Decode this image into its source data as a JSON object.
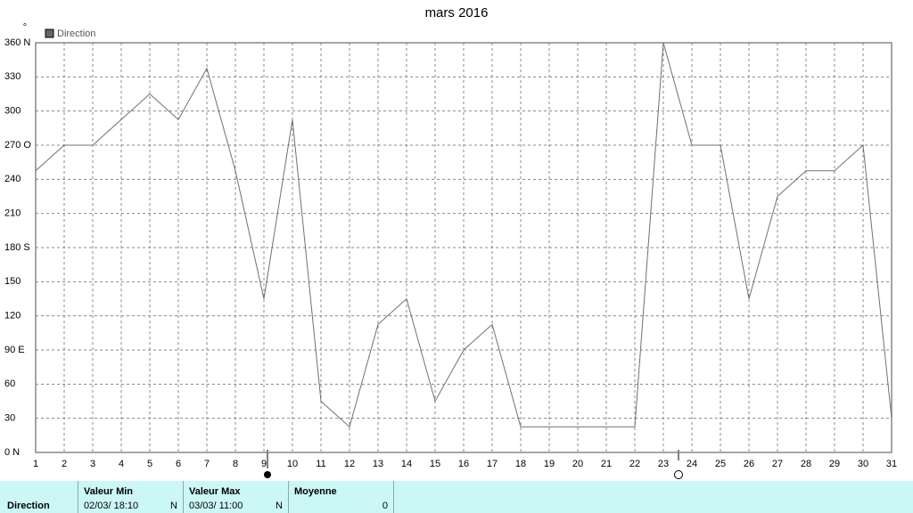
{
  "chart_data": {
    "type": "line",
    "title": "mars 2016",
    "ylabel": "°",
    "x": [
      1,
      2,
      3,
      4,
      5,
      6,
      7,
      8,
      9,
      10,
      11,
      12,
      13,
      14,
      15,
      16,
      17,
      18,
      19,
      20,
      21,
      22,
      23,
      24,
      25,
      26,
      27,
      28,
      29,
      30,
      31
    ],
    "series": [
      {
        "name": "Direction",
        "color": "#707070",
        "values": [
          247.5,
          270,
          270,
          292.5,
          315,
          292.5,
          337.5,
          247.5,
          135,
          292.5,
          45,
          22.5,
          112.5,
          135,
          45,
          90,
          112.5,
          22.5,
          22.5,
          22.5,
          22.5,
          22.5,
          360,
          270,
          270,
          135,
          225,
          247.5,
          247.5,
          270,
          30
        ]
      }
    ],
    "xlim": [
      1,
      31
    ],
    "xticks": [
      1,
      2,
      3,
      4,
      5,
      6,
      7,
      8,
      9,
      10,
      11,
      12,
      13,
      14,
      15,
      16,
      17,
      18,
      19,
      20,
      21,
      22,
      23,
      24,
      25,
      26,
      27,
      28,
      29,
      30,
      31
    ],
    "ylim": [
      0,
      360
    ],
    "yticks": [
      {
        "value": 0,
        "label": "0   N"
      },
      30,
      60,
      {
        "value": 90,
        "label": "90  E"
      },
      120,
      150,
      {
        "value": 180,
        "label": "180 S"
      },
      210,
      240,
      {
        "value": 270,
        "label": "270 O"
      },
      300,
      330,
      {
        "value": 360,
        "label": "360 N"
      }
    ],
    "grid": true,
    "legend": "top-left"
  },
  "summary": {
    "row_label": "Direction",
    "min_header": "Valeur Min",
    "min_time": "02/03/ 18:10",
    "min_value": "N",
    "max_header": "Valeur Max",
    "max_time": "03/03/ 11:00",
    "max_value": "N",
    "mean_header": "Moyenne",
    "mean_value": 0
  }
}
